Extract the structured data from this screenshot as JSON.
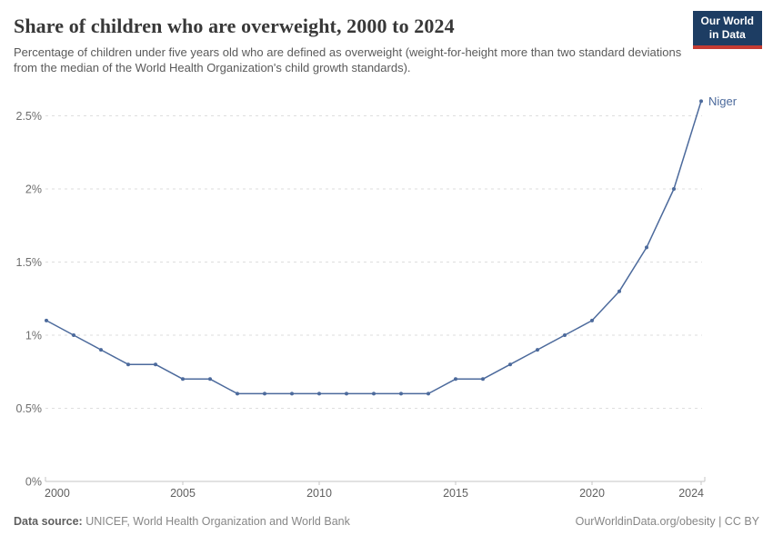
{
  "header": {
    "title": "Share of children who are overweight, 2000 to 2024",
    "subtitle": "Percentage of children under five years old who are defined as overweight (weight-for-height more than two standard deviations from the median of the World Health Organization's child growth standards).",
    "logo": {
      "line1": "Our World",
      "line2": "in Data"
    }
  },
  "chart_data": {
    "type": "line",
    "title": "Share of children who are overweight, 2000 to 2024",
    "x": [
      2000,
      2001,
      2002,
      2003,
      2004,
      2005,
      2006,
      2007,
      2008,
      2009,
      2010,
      2011,
      2012,
      2013,
      2014,
      2015,
      2016,
      2017,
      2018,
      2019,
      2020,
      2021,
      2022,
      2023,
      2024
    ],
    "series": [
      {
        "name": "Niger",
        "color": "#4C6A9C",
        "values": [
          1.1,
          1.0,
          0.9,
          0.8,
          0.8,
          0.7,
          0.7,
          0.6,
          0.6,
          0.6,
          0.6,
          0.6,
          0.6,
          0.6,
          0.6,
          0.7,
          0.7,
          0.8,
          0.9,
          1.0,
          1.1,
          1.3,
          1.6,
          2.0,
          2.6
        ]
      }
    ],
    "xlabel": "",
    "ylabel": "",
    "xlim": [
      2000,
      2024
    ],
    "ylim": [
      0,
      2.6
    ],
    "x_ticks": [
      2000,
      2005,
      2010,
      2015,
      2020,
      2024
    ],
    "y_ticks": [
      0,
      0.5,
      1,
      1.5,
      2,
      2.5
    ],
    "y_tick_labels": [
      "0%",
      "0.5%",
      "1%",
      "1.5%",
      "2%",
      "2.5%"
    ],
    "grid": "horizontal-dashed",
    "legend_position": "end-of-line-label"
  },
  "footer": {
    "source_label": "Data source:",
    "source_text": " UNICEF, World Health Organization and World Bank",
    "right_text": "OurWorldinData.org/obesity | CC BY"
  },
  "colors": {
    "line": "#4C6A9C",
    "grid": "#dedede",
    "axis": "#c6c6c6",
    "tick_label": "#6e6e6e",
    "x_tick_label": "#606060",
    "logo_background": "#1d3d63",
    "logo_red": "#c43b33"
  }
}
